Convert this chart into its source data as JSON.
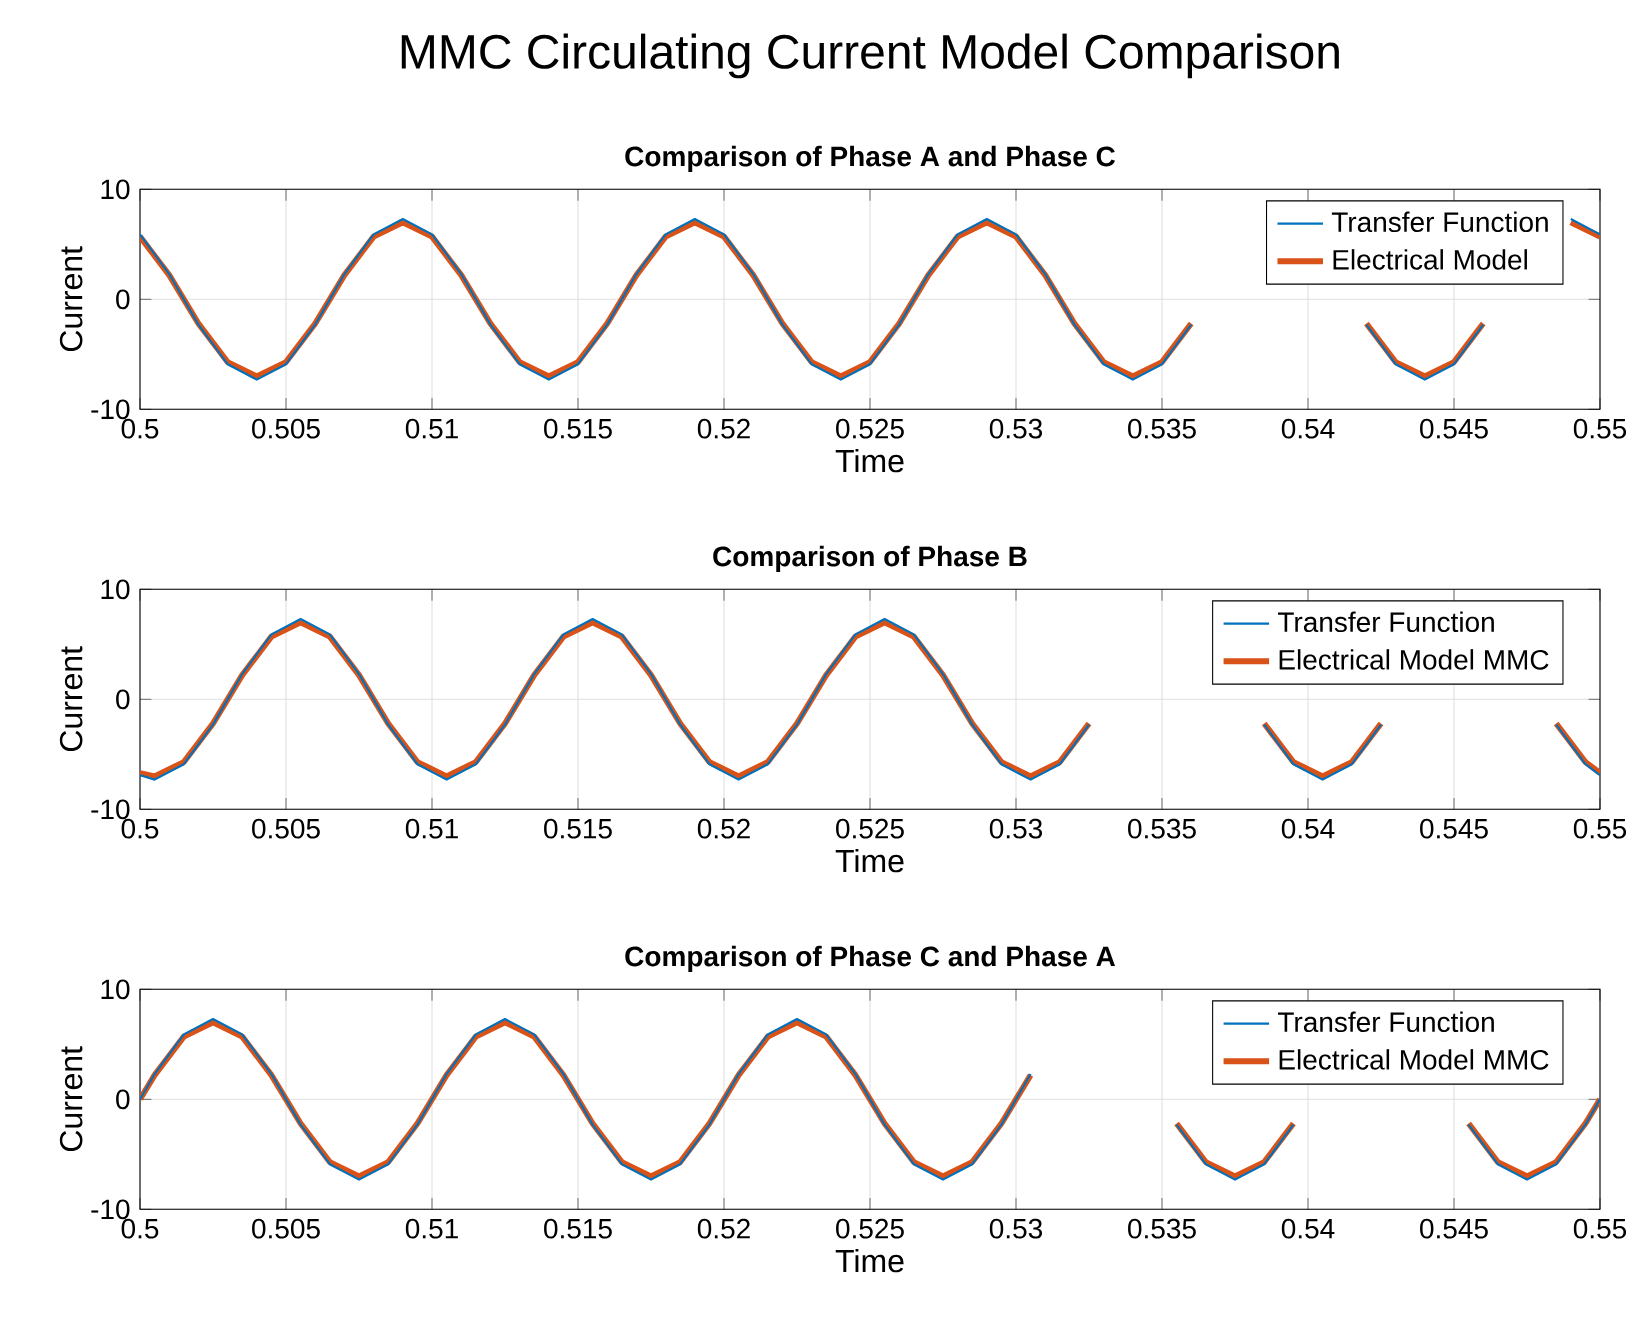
{
  "chart_data": [
    {
      "type": "line",
      "title": "Comparison of Phase A and Phase C",
      "xlabel": "Time",
      "ylabel": "Current",
      "annotations": [
        "MMC Circulating Current Model Comparison"
      ],
      "x": [
        0.5,
        0.501,
        0.502,
        0.503,
        0.504,
        0.505,
        0.506,
        0.507,
        0.508,
        0.509,
        0.51,
        0.511,
        0.512,
        0.513,
        0.514,
        0.515,
        0.516,
        0.517,
        0.518,
        0.519,
        0.52,
        0.521,
        0.522,
        0.523,
        0.524,
        0.525,
        0.526,
        0.527,
        0.528,
        0.529,
        0.53,
        0.531,
        0.532,
        0.533,
        0.534,
        0.535,
        0.536,
        0.537,
        0.538,
        0.539,
        0.54,
        0.541,
        0.542,
        0.543,
        0.544,
        0.545,
        0.546,
        0.547,
        0.548,
        0.549,
        0.55
      ],
      "series": [
        {
          "name": "Transfer Function",
          "color": "#0072bd",
          "values": [
            5.9,
            2.3,
            -2.3,
            -5.9,
            -7.3,
            -5.9,
            -2.3,
            2.3,
            5.9,
            7.3,
            5.9,
            2.3,
            -2.3,
            -5.9,
            -7.3,
            -5.9,
            -2.3,
            2.3,
            5.9,
            7.3,
            5.9,
            2.3,
            -2.3,
            -5.9,
            -7.3,
            -5.9,
            -2.3,
            2.3,
            5.9,
            7.3,
            5.9,
            2.3,
            -2.3,
            -5.9,
            -7.3,
            -5.9,
            -2.3,
            null,
            null,
            null,
            null,
            null,
            -2.3,
            -5.9,
            -7.3,
            -5.9,
            -2.3,
            null,
            null,
            7.3,
            5.9
          ]
        },
        {
          "name": "Electrical Model",
          "color": "#d95319",
          "values": [
            5.7,
            2.2,
            -2.2,
            -5.7,
            -7.0,
            -5.7,
            -2.2,
            2.2,
            5.7,
            7.0,
            5.7,
            2.2,
            -2.2,
            -5.7,
            -7.0,
            -5.7,
            -2.2,
            2.2,
            5.7,
            7.0,
            5.7,
            2.2,
            -2.2,
            -5.7,
            -7.0,
            -5.7,
            -2.2,
            2.2,
            5.7,
            7.0,
            5.7,
            2.2,
            -2.2,
            -5.7,
            -7.0,
            -5.7,
            -2.2,
            null,
            null,
            null,
            null,
            null,
            -2.2,
            -5.7,
            -7.0,
            -5.7,
            -2.2,
            null,
            null,
            7.0,
            5.7
          ]
        }
      ],
      "xlim": [
        0.5,
        0.55
      ],
      "ylim": [
        -10,
        10
      ],
      "xticks": [
        0.5,
        0.505,
        0.51,
        0.515,
        0.52,
        0.525,
        0.53,
        0.535,
        0.54,
        0.545,
        0.55
      ],
      "yticks": [
        -10,
        0,
        10
      ],
      "grid": true,
      "legend": "top right",
      "line_style": "solid"
    },
    {
      "type": "line",
      "title": "Comparison of Phase B",
      "xlabel": "Time",
      "ylabel": "Current",
      "x": [
        0.5,
        0.5005,
        0.5015,
        0.5025,
        0.5035,
        0.5045,
        0.5055,
        0.5065,
        0.5075,
        0.5085,
        0.5095,
        0.5105,
        0.5115,
        0.5125,
        0.5135,
        0.5145,
        0.5155,
        0.5165,
        0.5175,
        0.5185,
        0.5195,
        0.5205,
        0.5215,
        0.5225,
        0.5235,
        0.5245,
        0.5255,
        0.5265,
        0.5275,
        0.5285,
        0.5295,
        0.5305,
        0.5315,
        0.5325,
        0.5335,
        0.5345,
        0.5355,
        0.5365,
        0.5375,
        0.5385,
        0.5395,
        0.5405,
        0.5415,
        0.5425,
        0.5435,
        0.5445,
        0.5455,
        0.5465,
        0.5475,
        0.5485,
        0.5495,
        0.55
      ],
      "series": [
        {
          "name": "Transfer Function",
          "color": "#0072bd",
          "values": [
            -6.9,
            -7.3,
            -5.9,
            -2.3,
            2.3,
            5.9,
            7.3,
            5.9,
            2.3,
            -2.3,
            -5.9,
            -7.3,
            -5.9,
            -2.3,
            2.3,
            5.9,
            7.3,
            5.9,
            2.3,
            -2.3,
            -5.9,
            -7.3,
            -5.9,
            -2.3,
            2.3,
            5.9,
            7.3,
            5.9,
            2.3,
            -2.3,
            -5.9,
            -7.3,
            -5.9,
            -2.3,
            null,
            null,
            null,
            null,
            null,
            -2.3,
            -5.9,
            -7.3,
            -5.9,
            -2.3,
            null,
            null,
            null,
            null,
            null,
            -2.3,
            -5.9,
            -6.9
          ]
        },
        {
          "name": "Electrical Model MMC",
          "color": "#d95319",
          "values": [
            -6.7,
            -7.0,
            -5.7,
            -2.2,
            2.2,
            5.7,
            7.0,
            5.7,
            2.2,
            -2.2,
            -5.7,
            -7.0,
            -5.7,
            -2.2,
            2.2,
            5.7,
            7.0,
            5.7,
            2.2,
            -2.2,
            -5.7,
            -7.0,
            -5.7,
            -2.2,
            2.2,
            5.7,
            7.0,
            5.7,
            2.2,
            -2.2,
            -5.7,
            -7.0,
            -5.7,
            -2.2,
            null,
            null,
            null,
            null,
            null,
            -2.2,
            -5.7,
            -7.0,
            -5.7,
            -2.2,
            null,
            null,
            null,
            null,
            null,
            -2.2,
            -5.7,
            -6.7
          ]
        }
      ],
      "xlim": [
        0.5,
        0.55
      ],
      "ylim": [
        -10,
        10
      ],
      "xticks": [
        0.5,
        0.505,
        0.51,
        0.515,
        0.52,
        0.525,
        0.53,
        0.535,
        0.54,
        0.545,
        0.55
      ],
      "yticks": [
        -10,
        0,
        10
      ],
      "grid": true,
      "legend": "top right",
      "line_style": "solid"
    },
    {
      "type": "line",
      "title": "Comparison of Phase C and Phase A",
      "xlabel": "Time",
      "ylabel": "Current",
      "x": [
        0.5,
        0.5005,
        0.5015,
        0.5025,
        0.5035,
        0.5045,
        0.5055,
        0.5065,
        0.5075,
        0.5085,
        0.5095,
        0.5105,
        0.5115,
        0.5125,
        0.5135,
        0.5145,
        0.5155,
        0.5165,
        0.5175,
        0.5185,
        0.5195,
        0.5205,
        0.5215,
        0.5225,
        0.5235,
        0.5245,
        0.5255,
        0.5265,
        0.5275,
        0.5285,
        0.5295,
        0.5305,
        0.5315,
        0.5325,
        0.5335,
        0.5345,
        0.5355,
        0.5365,
        0.5375,
        0.5385,
        0.5395,
        0.5405,
        0.5415,
        0.5425,
        0.5435,
        0.5445,
        0.5455,
        0.5465,
        0.5475,
        0.5485,
        0.5495,
        0.55
      ],
      "series": [
        {
          "name": "Transfer Function",
          "color": "#0072bd",
          "values": [
            0,
            2.3,
            5.9,
            7.3,
            5.9,
            2.3,
            -2.3,
            -5.9,
            -7.3,
            -5.9,
            -2.3,
            2.3,
            5.9,
            7.3,
            5.9,
            2.3,
            -2.3,
            -5.9,
            -7.3,
            -5.9,
            -2.3,
            2.3,
            5.9,
            7.3,
            5.9,
            2.3,
            -2.3,
            -5.9,
            -7.3,
            -5.9,
            -2.3,
            2.3,
            null,
            null,
            null,
            null,
            -2.3,
            -5.9,
            -7.3,
            -5.9,
            -2.3,
            null,
            null,
            null,
            null,
            null,
            -2.3,
            -5.9,
            -7.3,
            -5.9,
            -2.3,
            0
          ]
        },
        {
          "name": "Electrical Model MMC",
          "color": "#d95319",
          "values": [
            0,
            2.2,
            5.7,
            7.0,
            5.7,
            2.2,
            -2.2,
            -5.7,
            -7.0,
            -5.7,
            -2.2,
            2.2,
            5.7,
            7.0,
            5.7,
            2.2,
            -2.2,
            -5.7,
            -7.0,
            -5.7,
            -2.2,
            2.2,
            5.7,
            7.0,
            5.7,
            2.2,
            -2.2,
            -5.7,
            -7.0,
            -5.7,
            -2.2,
            2.2,
            null,
            null,
            null,
            null,
            -2.2,
            -5.7,
            -7.0,
            -5.7,
            -2.2,
            null,
            null,
            null,
            null,
            null,
            -2.2,
            -5.7,
            -7.0,
            -5.7,
            -2.2,
            0
          ]
        }
      ],
      "xlim": [
        0.5,
        0.55
      ],
      "ylim": [
        -10,
        10
      ],
      "xticks": [
        0.5,
        0.505,
        0.51,
        0.515,
        0.52,
        0.525,
        0.53,
        0.535,
        0.54,
        0.545,
        0.55
      ],
      "yticks": [
        -10,
        0,
        10
      ],
      "grid": true,
      "legend": "top right",
      "line_style": "solid"
    }
  ]
}
